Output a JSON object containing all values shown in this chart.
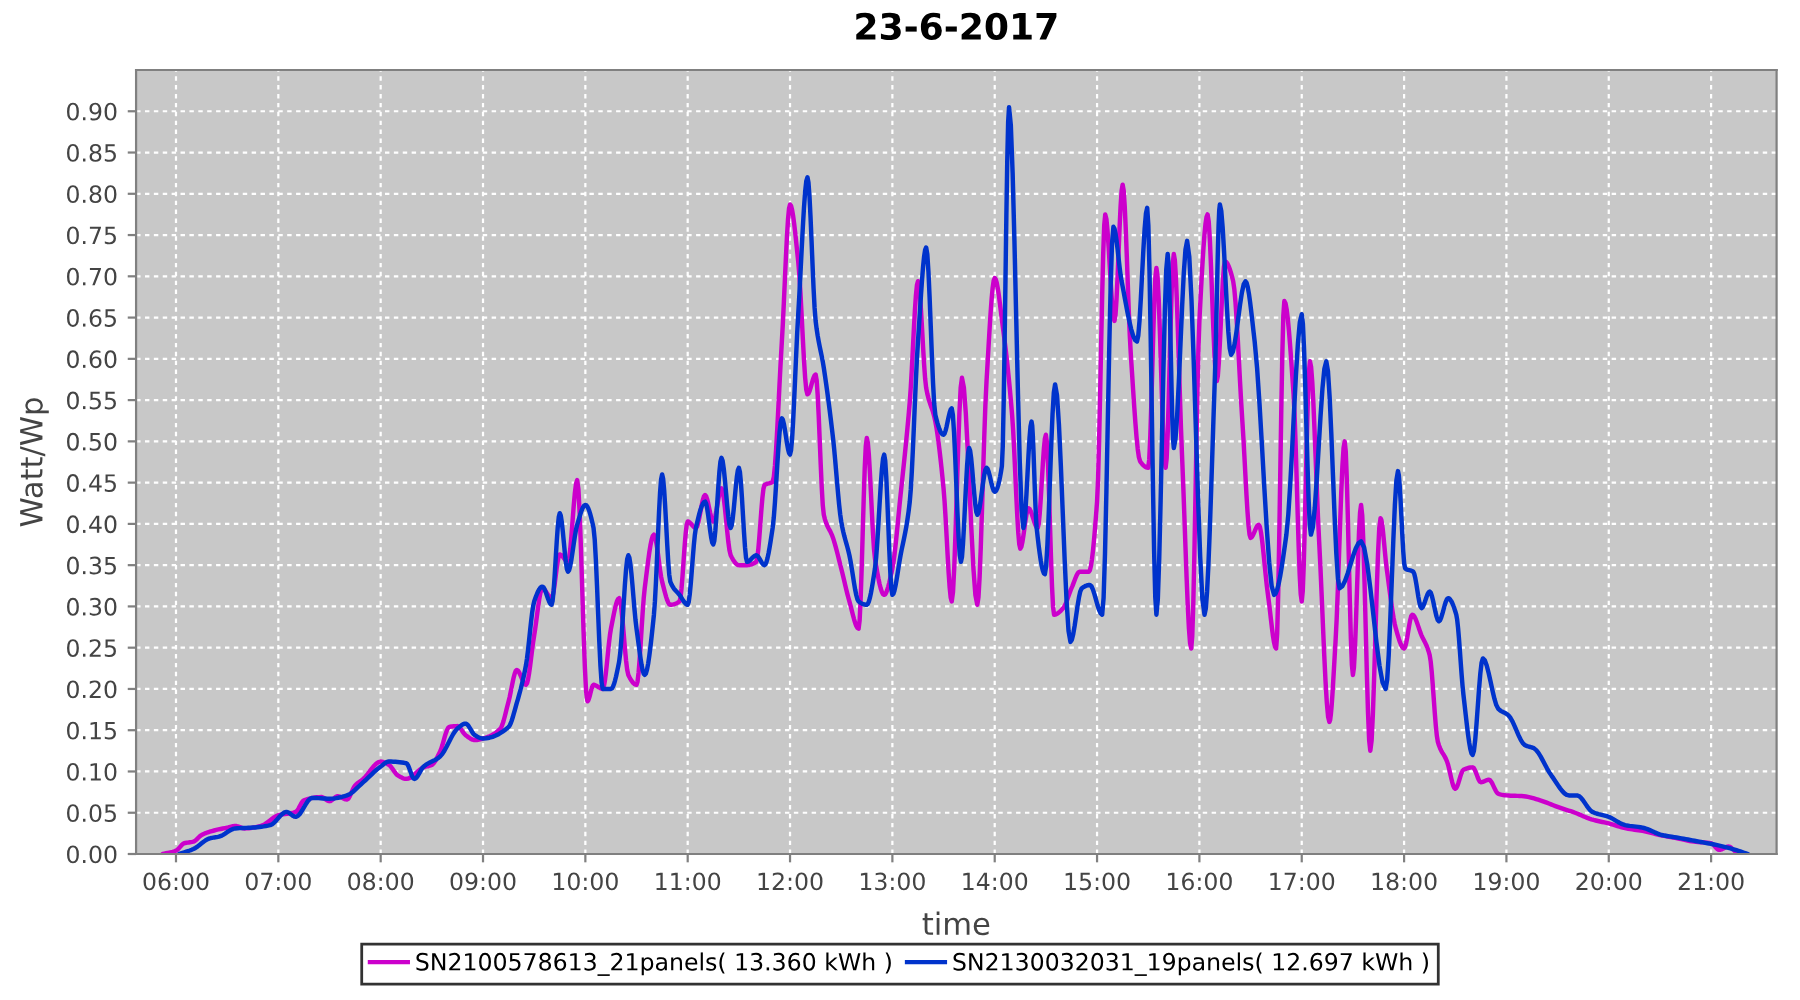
{
  "chart_data": {
    "type": "line",
    "title": "23-6-2017",
    "xlabel": "time",
    "ylabel": "Watt/Wp",
    "xlim": [
      5.61,
      21.64
    ],
    "xticks": [
      {
        "value": 6,
        "label": "06:00"
      },
      {
        "value": 7,
        "label": "07:00"
      },
      {
        "value": 8,
        "label": "08:00"
      },
      {
        "value": 9,
        "label": "09:00"
      },
      {
        "value": 10,
        "label": "10:00"
      },
      {
        "value": 11,
        "label": "11:00"
      },
      {
        "value": 12,
        "label": "12:00"
      },
      {
        "value": 13,
        "label": "13:00"
      },
      {
        "value": 14,
        "label": "14:00"
      },
      {
        "value": 15,
        "label": "15:00"
      },
      {
        "value": 16,
        "label": "16:00"
      },
      {
        "value": 17,
        "label": "17:00"
      },
      {
        "value": 18,
        "label": "18:00"
      },
      {
        "value": 19,
        "label": "19:00"
      },
      {
        "value": 20,
        "label": "20:00"
      },
      {
        "value": 21,
        "label": "21:00"
      }
    ],
    "ylim": [
      0,
      0.95
    ],
    "yticks": [
      {
        "value": 0,
        "label": "0.00"
      },
      {
        "value": 0.05,
        "label": "0.05"
      },
      {
        "value": 0.1,
        "label": "0.10"
      },
      {
        "value": 0.15,
        "label": "0.15"
      },
      {
        "value": 0.2,
        "label": "0.20"
      },
      {
        "value": 0.25,
        "label": "0.25"
      },
      {
        "value": 0.3,
        "label": "0.30"
      },
      {
        "value": 0.35,
        "label": "0.35"
      },
      {
        "value": 0.4,
        "label": "0.40"
      },
      {
        "value": 0.45,
        "label": "0.45"
      },
      {
        "value": 0.5,
        "label": "0.50"
      },
      {
        "value": 0.55,
        "label": "0.55"
      },
      {
        "value": 0.6,
        "label": "0.60"
      },
      {
        "value": 0.65,
        "label": "0.65"
      },
      {
        "value": 0.7,
        "label": "0.70"
      },
      {
        "value": 0.75,
        "label": "0.75"
      },
      {
        "value": 0.8,
        "label": "0.80"
      },
      {
        "value": 0.85,
        "label": "0.85"
      },
      {
        "value": 0.9,
        "label": "0.90"
      }
    ],
    "grid": true,
    "legend": "bottom",
    "series": [
      {
        "name": "SN2100578613_21panels( 13.360 kWh )",
        "color": "#cc00cc",
        "x": [
          5.87,
          6.0,
          6.08,
          6.17,
          6.25,
          6.33,
          6.5,
          6.58,
          6.67,
          6.83,
          7.0,
          7.17,
          7.25,
          7.42,
          7.5,
          7.58,
          7.67,
          7.75,
          7.83,
          8.0,
          8.08,
          8.17,
          8.25,
          8.42,
          8.5,
          8.58,
          8.67,
          8.75,
          8.83,
          8.92,
          9.0,
          9.17,
          9.25,
          9.33,
          9.42,
          9.5,
          9.58,
          9.67,
          9.75,
          9.83,
          9.92,
          10.02,
          10.08,
          10.17,
          10.25,
          10.33,
          10.42,
          10.5,
          10.58,
          10.67,
          10.75,
          10.83,
          10.92,
          11.0,
          11.08,
          11.17,
          11.25,
          11.33,
          11.42,
          11.5,
          11.58,
          11.67,
          11.75,
          11.83,
          11.92,
          12.0,
          12.08,
          12.17,
          12.25,
          12.33,
          12.42,
          12.5,
          12.58,
          12.67,
          12.75,
          12.83,
          12.92,
          13.0,
          13.08,
          13.17,
          13.25,
          13.33,
          13.42,
          13.5,
          13.58,
          13.68,
          13.83,
          13.92,
          14.0,
          14.08,
          14.17,
          14.25,
          14.33,
          14.42,
          14.5,
          14.58,
          14.67,
          14.75,
          14.83,
          14.92,
          15.0,
          15.08,
          15.17,
          15.25,
          15.33,
          15.42,
          15.5,
          15.58,
          15.67,
          15.75,
          15.83,
          15.92,
          16.0,
          16.08,
          16.17,
          16.25,
          16.33,
          16.42,
          16.5,
          16.58,
          16.67,
          16.75,
          16.83,
          16.92,
          17.0,
          17.08,
          17.17,
          17.27,
          17.33,
          17.42,
          17.5,
          17.58,
          17.67,
          17.77,
          17.83,
          17.92,
          18.0,
          18.08,
          18.17,
          18.25,
          18.33,
          18.42,
          18.5,
          18.58,
          18.67,
          18.75,
          18.83,
          18.92,
          19.0,
          19.17,
          19.33,
          19.5,
          19.67,
          19.83,
          20.0,
          20.17,
          20.33,
          20.5,
          20.67,
          20.83,
          21.0,
          21.08,
          21.17,
          21.25,
          21.3
        ],
        "values": [
          0,
          0.004,
          0.013,
          0.015,
          0.023,
          0.027,
          0.032,
          0.034,
          0.031,
          0.034,
          0.047,
          0.051,
          0.065,
          0.069,
          0.064,
          0.07,
          0.066,
          0.083,
          0.091,
          0.112,
          0.108,
          0.095,
          0.091,
          0.105,
          0.108,
          0.124,
          0.154,
          0.155,
          0.144,
          0.138,
          0.14,
          0.152,
          0.185,
          0.223,
          0.205,
          0.265,
          0.322,
          0.31,
          0.363,
          0.354,
          0.453,
          0.185,
          0.205,
          0.2,
          0.273,
          0.31,
          0.217,
          0.205,
          0.322,
          0.387,
          0.33,
          0.302,
          0.306,
          0.403,
          0.395,
          0.435,
          0.403,
          0.443,
          0.362,
          0.35,
          0.35,
          0.354,
          0.447,
          0.451,
          0.621,
          0.787,
          0.718,
          0.557,
          0.581,
          0.411,
          0.383,
          0.346,
          0.306,
          0.273,
          0.504,
          0.358,
          0.314,
          0.346,
          0.435,
          0.548,
          0.694,
          0.565,
          0.524,
          0.443,
          0.306,
          0.577,
          0.302,
          0.573,
          0.698,
          0.638,
          0.532,
          0.37,
          0.419,
          0.395,
          0.508,
          0.29,
          0.298,
          0.322,
          0.342,
          0.342,
          0.427,
          0.775,
          0.646,
          0.811,
          0.605,
          0.476,
          0.468,
          0.71,
          0.468,
          0.727,
          0.484,
          0.249,
          0.646,
          0.775,
          0.573,
          0.718,
          0.694,
          0.524,
          0.383,
          0.399,
          0.314,
          0.249,
          0.67,
          0.557,
          0.306,
          0.597,
          0.379,
          0.16,
          0.257,
          0.5,
          0.217,
          0.423,
          0.125,
          0.407,
          0.346,
          0.273,
          0.249,
          0.29,
          0.265,
          0.241,
          0.136,
          0.112,
          0.079,
          0.102,
          0.105,
          0.087,
          0.09,
          0.073,
          0.071,
          0.07,
          0.065,
          0.057,
          0.05,
          0.042,
          0.037,
          0.031,
          0.028,
          0.023,
          0.019,
          0.015,
          0.013,
          0.005,
          0.009,
          0.002,
          0
        ]
      },
      {
        "name": "SN2130032031_19panels( 12.697 kWh )",
        "color": "#0033cc",
        "x": [
          6.03,
          6.17,
          6.33,
          6.42,
          6.58,
          6.75,
          6.92,
          7.08,
          7.17,
          7.33,
          7.5,
          7.67,
          7.83,
          8.0,
          8.08,
          8.25,
          8.33,
          8.42,
          8.58,
          8.75,
          8.83,
          8.92,
          9.0,
          9.25,
          9.33,
          9.42,
          9.5,
          9.58,
          9.67,
          9.75,
          9.83,
          9.92,
          10.0,
          10.08,
          10.17,
          10.25,
          10.33,
          10.42,
          10.5,
          10.58,
          10.67,
          10.75,
          10.83,
          10.92,
          11.0,
          11.08,
          11.17,
          11.25,
          11.33,
          11.42,
          11.5,
          11.58,
          11.67,
          11.75,
          11.83,
          11.92,
          12.0,
          12.08,
          12.17,
          12.25,
          12.33,
          12.42,
          12.5,
          12.58,
          12.67,
          12.75,
          12.83,
          12.92,
          13.0,
          13.08,
          13.17,
          13.25,
          13.33,
          13.42,
          13.5,
          13.58,
          13.67,
          13.75,
          13.83,
          13.92,
          14.0,
          14.07,
          14.14,
          14.28,
          14.36,
          14.41,
          14.49,
          14.59,
          14.74,
          14.85,
          14.93,
          15.05,
          15.16,
          15.24,
          15.39,
          15.49,
          15.58,
          15.69,
          15.75,
          15.88,
          16.05,
          16.15,
          16.2,
          16.31,
          16.45,
          16.54,
          16.73,
          16.85,
          17.0,
          17.09,
          17.24,
          17.37,
          17.58,
          17.82,
          17.94,
          18.01,
          18.09,
          18.17,
          18.25,
          18.34,
          18.43,
          18.51,
          18.58,
          18.67,
          18.77,
          18.92,
          19.02,
          19.18,
          19.27,
          19.44,
          19.61,
          19.69,
          19.84,
          20.0,
          20.16,
          20.33,
          20.52,
          20.71,
          20.88,
          21.05,
          21.21,
          21.36
        ],
        "values": [
          0,
          0.006,
          0.019,
          0.021,
          0.031,
          0.032,
          0.035,
          0.051,
          0.045,
          0.068,
          0.067,
          0.071,
          0.087,
          0.106,
          0.112,
          0.11,
          0.091,
          0.106,
          0.118,
          0.152,
          0.158,
          0.144,
          0.14,
          0.154,
          0.183,
          0.229,
          0.306,
          0.324,
          0.302,
          0.413,
          0.342,
          0.399,
          0.423,
          0.395,
          0.2,
          0.2,
          0.233,
          0.362,
          0.273,
          0.217,
          0.29,
          0.46,
          0.33,
          0.314,
          0.302,
          0.395,
          0.427,
          0.375,
          0.48,
          0.395,
          0.468,
          0.354,
          0.362,
          0.35,
          0.395,
          0.528,
          0.484,
          0.654,
          0.82,
          0.646,
          0.589,
          0.504,
          0.403,
          0.362,
          0.306,
          0.302,
          0.346,
          0.484,
          0.314,
          0.362,
          0.427,
          0.621,
          0.735,
          0.532,
          0.508,
          0.54,
          0.354,
          0.492,
          0.411,
          0.468,
          0.439,
          0.47,
          0.905,
          0.395,
          0.524,
          0.395,
          0.339,
          0.569,
          0.257,
          0.322,
          0.326,
          0.29,
          0.76,
          0.694,
          0.621,
          0.783,
          0.29,
          0.727,
          0.492,
          0.743,
          0.29,
          0.573,
          0.787,
          0.605,
          0.694,
          0.621,
          0.314,
          0.387,
          0.654,
          0.387,
          0.597,
          0.322,
          0.379,
          0.2,
          0.464,
          0.346,
          0.342,
          0.298,
          0.318,
          0.282,
          0.31,
          0.29,
          0.193,
          0.12,
          0.237,
          0.176,
          0.168,
          0.132,
          0.128,
          0.095,
          0.071,
          0.071,
          0.051,
          0.045,
          0.035,
          0.032,
          0.023,
          0.019,
          0.015,
          0.011,
          0.006,
          0
        ]
      }
    ]
  }
}
